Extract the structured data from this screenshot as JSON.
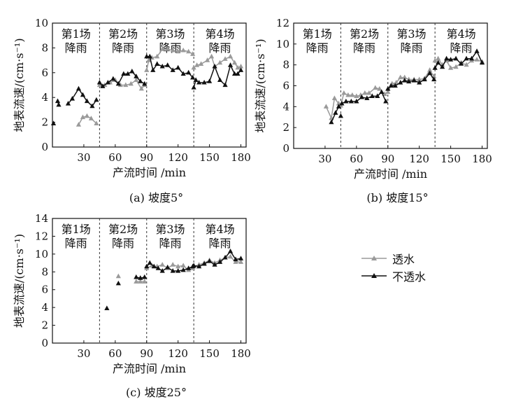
{
  "chart_data": [
    {
      "type": "line",
      "caption": "(a) 坡度5°",
      "xlabel": "产流时间 /min",
      "ylabel": "地表流速/(cm·s⁻¹)",
      "xlim": [
        0,
        185
      ],
      "ylim": [
        0,
        10
      ],
      "xticks": [
        30,
        60,
        90,
        120,
        150,
        180
      ],
      "yticks": [
        0,
        2,
        4,
        6,
        8,
        10
      ],
      "events": [
        {
          "label": "第1场\n降雨",
          "start": 0,
          "end": 45
        },
        {
          "label": "第2场\n降雨",
          "start": 45,
          "end": 90
        },
        {
          "label": "第3场\n降雨",
          "start": 90,
          "end": 135
        },
        {
          "label": "第4场\n降雨",
          "start": 135,
          "end": 185
        }
      ],
      "dividers": [
        45,
        90,
        135
      ],
      "series": [
        {
          "name": "透水",
          "color": "#9a9a9a",
          "marker": "triangle",
          "segments": [
            [
              [
                25,
                1.8
              ],
              [
                29,
                2.4
              ],
              [
                33,
                2.5
              ],
              [
                37,
                2.3
              ],
              [
                42,
                1.9
              ]
            ],
            [
              [
                45,
                5.0
              ],
              [
                50,
                5.0
              ],
              [
                55,
                5.2
              ],
              [
                60,
                5.4
              ],
              [
                65,
                5.0
              ],
              [
                70,
                5.0
              ],
              [
                75,
                5.1
              ],
              [
                80,
                5.4
              ],
              [
                85,
                4.7
              ],
              [
                88,
                5.0
              ]
            ],
            [
              [
                90,
                6.2
              ],
              [
                92,
                7.0
              ],
              [
                95,
                7.2
              ],
              [
                100,
                7.3
              ],
              [
                105,
                7.9
              ],
              [
                110,
                7.9
              ],
              [
                115,
                7.8
              ],
              [
                120,
                7.7
              ],
              [
                125,
                7.8
              ],
              [
                130,
                7.7
              ],
              [
                134,
                7.5
              ]
            ],
            [
              [
                135,
                6.4
              ],
              [
                138,
                6.6
              ],
              [
                142,
                6.7
              ],
              [
                148,
                7.0
              ],
              [
                152,
                7.3
              ],
              [
                155,
                6.5
              ],
              [
                160,
                6.8
              ],
              [
                165,
                7.1
              ],
              [
                170,
                7.3
              ],
              [
                174,
                6.8
              ],
              [
                177,
                6.4
              ],
              [
                180,
                6.5
              ]
            ]
          ]
        },
        {
          "name": "不透水",
          "color": "#111111",
          "marker": "triangle",
          "segments": [
            [
              [
                1,
                1.9
              ]
            ],
            [
              [
                5,
                3.7
              ],
              [
                6,
                3.4
              ]
            ],
            [
              [
                15,
                3.5
              ],
              [
                19,
                3.9
              ],
              [
                25,
                4.7
              ],
              [
                29,
                4.2
              ],
              [
                33,
                3.7
              ],
              [
                38,
                3.3
              ],
              [
                42,
                3.8
              ]
            ],
            [
              [
                45,
                5.2
              ],
              [
                48,
                4.9
              ],
              [
                53,
                5.2
              ],
              [
                58,
                5.5
              ],
              [
                63,
                5.1
              ],
              [
                68,
                5.9
              ],
              [
                72,
                5.9
              ],
              [
                76,
                6.1
              ],
              [
                80,
                5.7
              ],
              [
                84,
                5.3
              ],
              [
                88,
                5.1
              ]
            ],
            [
              [
                90,
                7.3
              ],
              [
                93,
                7.3
              ],
              [
                96,
                6.2
              ],
              [
                100,
                6.7
              ],
              [
                105,
                6.5
              ],
              [
                110,
                6.6
              ],
              [
                115,
                6.2
              ],
              [
                120,
                6.4
              ],
              [
                125,
                5.9
              ],
              [
                130,
                6.0
              ],
              [
                134,
                5.6
              ]
            ],
            [
              [
                135,
                4.8
              ],
              [
                137,
                5.4
              ],
              [
                140,
                5.2
              ],
              [
                145,
                5.2
              ],
              [
                150,
                5.3
              ],
              [
                155,
                6.5
              ],
              [
                160,
                5.4
              ],
              [
                165,
                5.0
              ],
              [
                170,
                6.6
              ],
              [
                174,
                5.9
              ],
              [
                177,
                5.9
              ],
              [
                180,
                6.2
              ]
            ]
          ]
        }
      ]
    },
    {
      "type": "line",
      "caption": "(b) 坡度15°",
      "xlabel": "产流时间 /min",
      "ylabel": "地表流速/(cm·s⁻¹)",
      "xlim": [
        0,
        185
      ],
      "ylim": [
        0,
        12
      ],
      "xticks": [
        30,
        60,
        90,
        120,
        150,
        180
      ],
      "yticks": [
        0,
        2,
        4,
        6,
        8,
        10,
        12
      ],
      "events": [
        {
          "label": "第1场\n降雨",
          "start": 0,
          "end": 45
        },
        {
          "label": "第2场\n降雨",
          "start": 45,
          "end": 90
        },
        {
          "label": "第3场\n降雨",
          "start": 90,
          "end": 135
        },
        {
          "label": "第4场\n降雨",
          "start": 135,
          "end": 185
        }
      ],
      "dividers": [
        45,
        90,
        135
      ],
      "series": [
        {
          "name": "透水",
          "color": "#9a9a9a",
          "marker": "triangle",
          "segments": [
            [
              [
                31,
                4.0
              ],
              [
                36,
                2.9
              ],
              [
                39,
                4.8
              ],
              [
                43,
                4.3
              ]
            ],
            [
              [
                45,
                4.1
              ],
              [
                48,
                5.3
              ],
              [
                52,
                5.1
              ],
              [
                56,
                5.1
              ],
              [
                60,
                5.0
              ],
              [
                64,
                5.1
              ],
              [
                68,
                5.3
              ],
              [
                72,
                5.3
              ],
              [
                78,
                5.8
              ],
              [
                82,
                5.7
              ],
              [
                87,
                5.2
              ]
            ],
            [
              [
                90,
                5.4
              ],
              [
                94,
                6.2
              ],
              [
                98,
                6.3
              ],
              [
                102,
                6.8
              ],
              [
                106,
                6.8
              ],
              [
                110,
                6.6
              ],
              [
                115,
                6.6
              ],
              [
                120,
                6.6
              ],
              [
                125,
                6.7
              ],
              [
                130,
                7.5
              ],
              [
                134,
                6.9
              ]
            ],
            [
              [
                135,
                8.4
              ],
              [
                138,
                8.6
              ],
              [
                142,
                8.0
              ],
              [
                146,
                8.4
              ],
              [
                150,
                7.7
              ],
              [
                155,
                7.8
              ],
              [
                160,
                8.2
              ],
              [
                165,
                8.0
              ],
              [
                170,
                8.4
              ],
              [
                175,
                8.5
              ],
              [
                180,
                8.3
              ]
            ]
          ]
        },
        {
          "name": "不透水",
          "color": "#111111",
          "marker": "triangle",
          "segments": [
            [
              [
                36,
                2.5
              ],
              [
                40,
                3.4
              ],
              [
                43,
                4.0
              ]
            ],
            [
              [
                45,
                3.1
              ]
            ],
            [
              [
                46,
                4.3
              ],
              [
                50,
                4.5
              ],
              [
                55,
                4.5
              ],
              [
                60,
                4.5
              ],
              [
                65,
                4.9
              ],
              [
                70,
                4.8
              ],
              [
                75,
                5.0
              ],
              [
                80,
                5.0
              ],
              [
                84,
                5.4
              ],
              [
                88,
                4.5
              ]
            ],
            [
              [
                90,
                5.7
              ],
              [
                93,
                6.0
              ],
              [
                97,
                6.0
              ],
              [
                102,
                6.3
              ],
              [
                106,
                6.5
              ],
              [
                110,
                6.4
              ],
              [
                115,
                6.5
              ],
              [
                120,
                6.3
              ],
              [
                125,
                6.6
              ],
              [
                130,
                7.2
              ],
              [
                134,
                6.6
              ]
            ],
            [
              [
                135,
                7.7
              ],
              [
                138,
                8.2
              ],
              [
                142,
                7.8
              ],
              [
                146,
                8.6
              ],
              [
                150,
                8.5
              ],
              [
                155,
                8.6
              ],
              [
                160,
                8.1
              ],
              [
                165,
                8.6
              ],
              [
                170,
                8.6
              ],
              [
                175,
                9.3
              ],
              [
                180,
                8.2
              ]
            ]
          ]
        }
      ]
    },
    {
      "type": "line",
      "caption": "(c) 坡度25°",
      "xlabel": "产流时间 /min",
      "ylabel": "地表流速/(cm·s⁻¹)",
      "xlim": [
        0,
        185
      ],
      "ylim": [
        0,
        14
      ],
      "xticks": [
        30,
        60,
        90,
        120,
        150,
        180
      ],
      "yticks": [
        0,
        2,
        4,
        6,
        8,
        10,
        12,
        14
      ],
      "events": [
        {
          "label": "第1场\n降雨",
          "start": 0,
          "end": 45
        },
        {
          "label": "第2场\n降雨",
          "start": 45,
          "end": 90
        },
        {
          "label": "第3场\n降雨",
          "start": 90,
          "end": 135
        },
        {
          "label": "第4场\n降雨",
          "start": 135,
          "end": 185
        }
      ],
      "dividers": [
        45,
        90,
        135
      ],
      "series": [
        {
          "name": "透水",
          "color": "#9a9a9a",
          "marker": "triangle",
          "segments": [
            [
              [
                63,
                7.5
              ]
            ],
            [
              [
                80,
                6.9
              ],
              [
                84,
                6.9
              ],
              [
                88,
                6.9
              ]
            ],
            [
              [
                90,
                8.4
              ],
              [
                95,
                8.7
              ],
              [
                100,
                8.6
              ],
              [
                105,
                8.8
              ],
              [
                110,
                8.4
              ],
              [
                115,
                8.8
              ],
              [
                120,
                8.6
              ],
              [
                125,
                8.7
              ],
              [
                130,
                8.2
              ],
              [
                134,
                8.4
              ]
            ],
            [
              [
                135,
                8.6
              ],
              [
                140,
                8.8
              ],
              [
                145,
                9.0
              ],
              [
                150,
                9.3
              ],
              [
                155,
                9.0
              ],
              [
                160,
                9.3
              ],
              [
                165,
                9.6
              ],
              [
                170,
                9.7
              ],
              [
                175,
                9.1
              ],
              [
                180,
                9.1
              ]
            ]
          ]
        },
        {
          "name": "不透水",
          "color": "#111111",
          "marker": "triangle",
          "segments": [
            [
              [
                52,
                3.9
              ]
            ],
            [
              [
                63,
                6.7
              ]
            ],
            [
              [
                80,
                7.4
              ],
              [
                84,
                7.3
              ],
              [
                88,
                7.4
              ]
            ],
            [
              [
                90,
                8.6
              ],
              [
                93,
                9.0
              ],
              [
                97,
                8.6
              ],
              [
                101,
                8.4
              ],
              [
                105,
                8.1
              ],
              [
                110,
                8.5
              ],
              [
                115,
                8.1
              ],
              [
                120,
                8.1
              ],
              [
                125,
                8.2
              ],
              [
                130,
                8.4
              ],
              [
                134,
                8.6
              ]
            ],
            [
              [
                135,
                8.7
              ],
              [
                140,
                8.6
              ],
              [
                145,
                8.9
              ],
              [
                150,
                9.2
              ],
              [
                155,
                8.8
              ],
              [
                160,
                9.1
              ],
              [
                165,
                9.6
              ],
              [
                170,
                10.3
              ],
              [
                175,
                9.4
              ],
              [
                180,
                9.5
              ]
            ]
          ]
        }
      ]
    }
  ],
  "legend": {
    "items": [
      {
        "label": "透水",
        "color": "#9a9a9a"
      },
      {
        "label": "不透水",
        "color": "#111111"
      }
    ]
  }
}
